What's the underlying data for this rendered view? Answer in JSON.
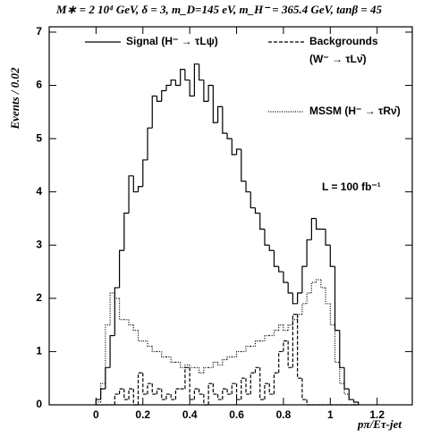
{
  "chart_data": {
    "type": "histogram",
    "title": "M∗ = 2 10⁴ GeV, δ = 3, m_D=145 eV, m_H⁻ = 365.4 GeV, tanβ = 45",
    "xlabel": "pπ/Eτ-jet",
    "ylabel": "Events / 0.02",
    "annotation": "L = 100 fb⁻¹",
    "bins": [
      0,
      0.02,
      0.04,
      0.06,
      0.08,
      0.1,
      0.12,
      0.14,
      0.16,
      0.18,
      0.2,
      0.22,
      0.24,
      0.26,
      0.28,
      0.3,
      0.32,
      0.34,
      0.36,
      0.38,
      0.4,
      0.42,
      0.44,
      0.46,
      0.48,
      0.5,
      0.52,
      0.54,
      0.56,
      0.58,
      0.6,
      0.62,
      0.64,
      0.66,
      0.68,
      0.7,
      0.72,
      0.74,
      0.76,
      0.78,
      0.8,
      0.82,
      0.84,
      0.86,
      0.88,
      0.9,
      0.92,
      0.94,
      0.96,
      0.98,
      1,
      1.02,
      1.04,
      1.06,
      1.08,
      1.1,
      1.12
    ],
    "series": [
      {
        "name": "Signal (H⁻ → τLψ)",
        "color": "#000000",
        "linestyle": "solid",
        "values": [
          0.1,
          0.3,
          0.7,
          1.3,
          2.2,
          2.9,
          3.6,
          4.3,
          4.0,
          4.1,
          4.6,
          5.2,
          5.8,
          5.7,
          5.9,
          6.0,
          6.1,
          6.0,
          6.3,
          6.1,
          5.8,
          6.4,
          6.1,
          5.7,
          6.0,
          5.3,
          5.6,
          5.1,
          5.0,
          4.7,
          4.8,
          4.2,
          4.0,
          3.7,
          3.6,
          3.3,
          3.0,
          2.9,
          2.6,
          2.5,
          2.3,
          2.1,
          1.9,
          2.1,
          2.6,
          3.1,
          3.5,
          3.3,
          3.3,
          3.0,
          2.6,
          1.4,
          0.7,
          0.3,
          0.1,
          0.05
        ]
      },
      {
        "name": "Backgrounds (W⁻ → τLν̄)",
        "color": "#000000",
        "linestyle": "dashed",
        "values": [
          0,
          0,
          0,
          0,
          0.2,
          0.3,
          0.1,
          0.3,
          0,
          0.6,
          0.2,
          0.4,
          0.2,
          0.3,
          0.1,
          0.2,
          0.1,
          0.3,
          0.3,
          0.7,
          0.1,
          0.3,
          0.2,
          0,
          0.4,
          0.2,
          0.1,
          0.3,
          0.2,
          0.4,
          0.1,
          0.5,
          0.2,
          0.6,
          0.7,
          0.1,
          0.4,
          0.2,
          0.6,
          1.0,
          1.2,
          0.7,
          1.7,
          0.5,
          0.1,
          0,
          0,
          0,
          0,
          0,
          0,
          0,
          0,
          0,
          0,
          0
        ]
      },
      {
        "name": "MSSM (H⁻ → τRν̄)",
        "color": "#000000",
        "linestyle": "dotted",
        "values": [
          0.05,
          0.4,
          1.5,
          2.1,
          2.0,
          1.6,
          1.6,
          1.5,
          1.4,
          1.2,
          1.2,
          1.1,
          1.0,
          1.0,
          0.9,
          0.9,
          0.8,
          0.8,
          0.7,
          0.75,
          0.7,
          0.7,
          0.6,
          0.7,
          0.7,
          0.8,
          0.75,
          0.85,
          0.9,
          0.9,
          1.0,
          1.0,
          1.1,
          1.1,
          1.2,
          1.2,
          1.3,
          1.3,
          1.4,
          1.5,
          1.4,
          1.5,
          1.6,
          1.7,
          1.9,
          2.1,
          2.3,
          2.35,
          2.2,
          1.9,
          1.5,
          0.8,
          0.4,
          0.2,
          0.1,
          0
        ]
      }
    ],
    "xlim": [
      -0.2,
      1.35
    ],
    "xticks": [
      0,
      0.2,
      0.4,
      0.6,
      0.8,
      1,
      1.2
    ],
    "ylim": [
      0,
      7.1
    ],
    "yticks": [
      0,
      1,
      2,
      3,
      4,
      5,
      6,
      7
    ],
    "grid": false
  }
}
